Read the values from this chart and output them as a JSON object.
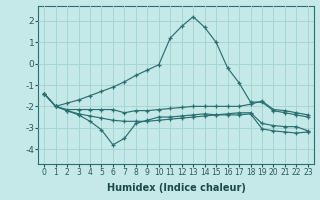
{
  "xlabel": "Humidex (Indice chaleur)",
  "background_color": "#c5e8e8",
  "grid_color": "#a8d4d4",
  "line_color": "#2a7070",
  "xlim": [
    -0.5,
    23.5
  ],
  "ylim": [
    -4.7,
    2.7
  ],
  "yticks": [
    -4,
    -3,
    -2,
    -1,
    0,
    1,
    2
  ],
  "xticks": [
    0,
    1,
    2,
    3,
    4,
    5,
    6,
    7,
    8,
    9,
    10,
    11,
    12,
    13,
    14,
    15,
    16,
    17,
    18,
    19,
    20,
    21,
    22,
    23
  ],
  "series": [
    {
      "x": [
        0,
        1,
        2,
        3,
        4,
        5,
        6,
        7,
        8,
        9,
        10,
        11,
        12,
        13,
        14,
        15,
        16,
        17,
        18,
        19,
        20,
        21,
        22,
        23
      ],
      "y": [
        -1.4,
        -2.0,
        -1.85,
        -1.7,
        -1.5,
        -1.3,
        -1.1,
        -0.85,
        -0.55,
        -0.3,
        -0.05,
        1.2,
        1.75,
        2.2,
        1.7,
        1.0,
        -0.2,
        -0.9,
        -1.8,
        -1.8,
        -2.2,
        -2.3,
        -2.4,
        -2.5
      ]
    },
    {
      "x": [
        0,
        1,
        2,
        3,
        4,
        5,
        6,
        7,
        8,
        9,
        10,
        11,
        12,
        13,
        14,
        15,
        16,
        17,
        18,
        19,
        20,
        21,
        22,
        23
      ],
      "y": [
        -1.4,
        -2.0,
        -2.15,
        -2.15,
        -2.15,
        -2.15,
        -2.15,
        -2.3,
        -2.2,
        -2.2,
        -2.15,
        -2.1,
        -2.05,
        -2.0,
        -2.0,
        -2.0,
        -2.0,
        -2.0,
        -1.9,
        -1.75,
        -2.15,
        -2.2,
        -2.3,
        -2.4
      ]
    },
    {
      "x": [
        0,
        1,
        2,
        3,
        4,
        5,
        6,
        7,
        8,
        9,
        10,
        11,
        12,
        13,
        14,
        15,
        16,
        17,
        18,
        19,
        20,
        21,
        22,
        23
      ],
      "y": [
        -1.4,
        -2.0,
        -2.2,
        -2.35,
        -2.45,
        -2.55,
        -2.65,
        -2.7,
        -2.7,
        -2.7,
        -2.65,
        -2.6,
        -2.55,
        -2.5,
        -2.45,
        -2.4,
        -2.35,
        -2.3,
        -2.3,
        -2.8,
        -2.9,
        -2.95,
        -2.95,
        -3.15
      ]
    },
    {
      "x": [
        0,
        1,
        2,
        3,
        4,
        5,
        6,
        7,
        8,
        9,
        10,
        11,
        12,
        13,
        14,
        15,
        16,
        17,
        18,
        19,
        20,
        21,
        22,
        23
      ],
      "y": [
        -1.4,
        -2.0,
        -2.2,
        -2.4,
        -2.7,
        -3.1,
        -3.8,
        -3.5,
        -2.8,
        -2.65,
        -2.5,
        -2.5,
        -2.45,
        -2.4,
        -2.35,
        -2.4,
        -2.4,
        -2.4,
        -2.35,
        -3.05,
        -3.15,
        -3.2,
        -3.25,
        -3.2
      ]
    }
  ]
}
